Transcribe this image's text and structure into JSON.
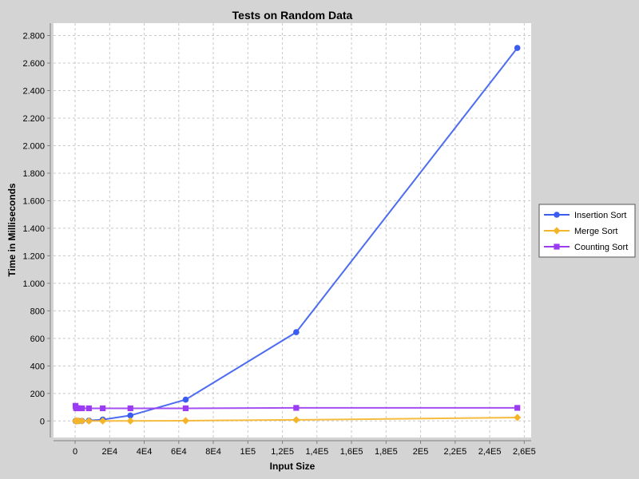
{
  "chart_data": {
    "type": "line",
    "title": "Tests on Random Data",
    "xlabel": "Input Size",
    "ylabel": "Time in Milliseconds",
    "xlim": [
      -12500,
      264000
    ],
    "ylim": [
      -120,
      2890
    ],
    "x_ticks": [
      0,
      20000,
      40000,
      60000,
      80000,
      100000,
      120000,
      140000,
      160000,
      180000,
      200000,
      220000,
      240000,
      260000
    ],
    "x_tick_labels": [
      "0",
      "2E4",
      "4E4",
      "6E4",
      "8E4",
      "1E5",
      "1,2E5",
      "1,4E5",
      "1,6E5",
      "1,8E5",
      "2E5",
      "2,2E5",
      "2,4E5",
      "2,6E5"
    ],
    "y_ticks": [
      0,
      200,
      400,
      600,
      800,
      1000,
      1200,
      1400,
      1600,
      1800,
      2000,
      2200,
      2400,
      2600,
      2800
    ],
    "y_tick_labels": [
      "0",
      "200",
      "400",
      "600",
      "800",
      "1.000",
      "1.200",
      "1.400",
      "1.600",
      "1.800",
      "2.000",
      "2.200",
      "2.400",
      "2.600",
      "2.800"
    ],
    "grid": true,
    "legend_position": "right",
    "series": [
      {
        "name": "Insertion Sort",
        "color": "#3a5cf0",
        "marker": "circle",
        "x": [
          250,
          500,
          1000,
          2000,
          4000,
          8000,
          16000,
          32000,
          64000,
          128000,
          256000
        ],
        "y": [
          0,
          0,
          0,
          0,
          1,
          3,
          10,
          40,
          155,
          645,
          2710
        ]
      },
      {
        "name": "Merge Sort",
        "color": "#f5b52a",
        "marker": "diamond",
        "x": [
          250,
          500,
          1000,
          2000,
          4000,
          8000,
          16000,
          32000,
          64000,
          128000,
          256000
        ],
        "y": [
          0,
          0,
          0,
          0,
          0,
          0,
          0,
          0,
          2,
          8,
          25
        ]
      },
      {
        "name": "Counting Sort",
        "color": "#9b3cf2",
        "marker": "square",
        "x": [
          250,
          500,
          1000,
          2000,
          4000,
          8000,
          16000,
          32000,
          64000,
          128000,
          256000
        ],
        "y": [
          110,
          95,
          92,
          92,
          92,
          92,
          92,
          92,
          92,
          95,
          95
        ]
      }
    ]
  }
}
